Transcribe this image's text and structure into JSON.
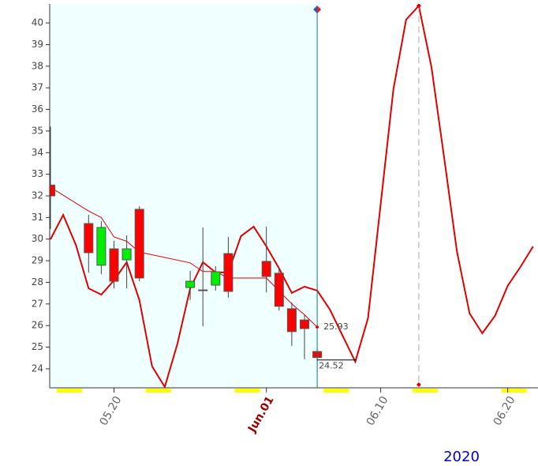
{
  "chart_data": {
    "type": "candlestick",
    "year_label": "2020",
    "x": [
      "2020-05-15",
      "2020-05-18",
      "2020-05-19",
      "2020-05-20",
      "2020-05-21",
      "2020-05-22",
      "2020-05-26",
      "2020-05-27",
      "2020-05-28",
      "2020-05-29",
      "2020-06-01",
      "2020-06-02",
      "2020-06-03",
      "2020-06-04",
      "2020-06-05"
    ],
    "open": [
      32.5,
      30.72,
      28.79,
      29.55,
      29.04,
      31.38,
      27.76,
      27.65,
      27.87,
      29.33,
      28.97,
      28.42,
      26.78,
      26.26,
      24.8
    ],
    "high": [
      35.2,
      31.12,
      30.83,
      29.92,
      30.17,
      31.52,
      28.53,
      30.54,
      28.75,
      30.1,
      30.58,
      28.68,
      27.07,
      26.48,
      24.95
    ],
    "low": [
      30.47,
      28.45,
      28.38,
      27.72,
      27.72,
      28.05,
      27.18,
      25.97,
      27.62,
      27.29,
      27.54,
      26.7,
      25.06,
      24.44,
      24.35
    ],
    "close": [
      32.0,
      29.37,
      30.54,
      28.05,
      29.55,
      28.2,
      28.05,
      27.65,
      28.49,
      27.58,
      28.27,
      26.89,
      25.72,
      25.86,
      24.52
    ],
    "up_color": "#00ee00",
    "down_color": "#ff0000",
    "series": [
      {
        "color": "#e00000",
        "x": [
          "2020-05-15",
          "2020-05-16",
          "2020-05-17",
          "2020-05-18",
          "2020-05-19",
          "2020-05-20",
          "2020-05-21",
          "2020-05-22",
          "2020-05-23",
          "2020-05-24",
          "2020-05-25",
          "2020-05-26",
          "2020-05-27",
          "2020-05-28",
          "2020-05-29",
          "2020-05-30",
          "2020-05-31",
          "2020-06-01",
          "2020-06-02",
          "2020-06-03",
          "2020-06-04",
          "2020-06-05",
          "2020-06-06",
          "2020-06-07",
          "2020-06-08",
          "2020-06-09",
          "2020-06-10",
          "2020-06-11",
          "2020-06-12",
          "2020-06-13",
          "2020-06-14",
          "2020-06-15",
          "2020-06-16",
          "2020-06-17",
          "2020-06-18",
          "2020-06-19",
          "2020-06-20",
          "2020-06-21",
          "2020-06-22"
        ],
        "values": [
          29.99,
          31.12,
          29.73,
          27.72,
          27.43,
          28.09,
          28.93,
          27.18,
          24.11,
          23.16,
          25.17,
          27.72,
          28.93,
          28.46,
          28.46,
          30.14,
          30.58,
          29.66,
          28.64,
          27.51,
          27.8,
          27.62,
          26.74,
          25.53,
          24.33,
          26.34,
          31.63,
          36.93,
          40.15,
          40.8,
          37.95,
          33.75,
          29.44,
          26.56,
          25.64,
          26.45,
          27.84,
          28.71,
          29.66
        ]
      },
      {
        "color": "#e00000",
        "x": [
          "2020-05-15",
          "2020-05-18",
          "2020-05-19",
          "2020-05-20",
          "2020-05-21",
          "2020-05-22",
          "2020-05-26",
          "2020-05-27",
          "2020-05-28",
          "2020-05-29",
          "2020-06-01",
          "2020-06-02",
          "2020-06-03",
          "2020-06-04",
          "2020-06-05"
        ],
        "values": [
          32.4,
          31.3,
          31.0,
          30.1,
          29.9,
          29.4,
          28.9,
          28.5,
          28.5,
          28.2,
          28.2,
          27.6,
          27.0,
          26.5,
          25.93
        ]
      }
    ],
    "xlim": [
      "2020-05-15",
      "2020-06-22"
    ],
    "xticks": [
      {
        "value": "2020-05-20",
        "label": "05.20"
      },
      {
        "value": "2020-06-01",
        "label": "Jun.01"
      },
      {
        "value": "2020-06-10",
        "label": "06.10"
      },
      {
        "value": "2020-06-20",
        "label": "06.20"
      }
    ],
    "ylim": [
      23.12,
      40.88
    ],
    "yticks": [
      24,
      25,
      26,
      27,
      28,
      29,
      30,
      31,
      32,
      33,
      34,
      35,
      36,
      37,
      38,
      39,
      40
    ],
    "shade_until": "2020-06-05",
    "shade_color": "#f0ffff",
    "weekend_color": "#ffff00"
  }
}
